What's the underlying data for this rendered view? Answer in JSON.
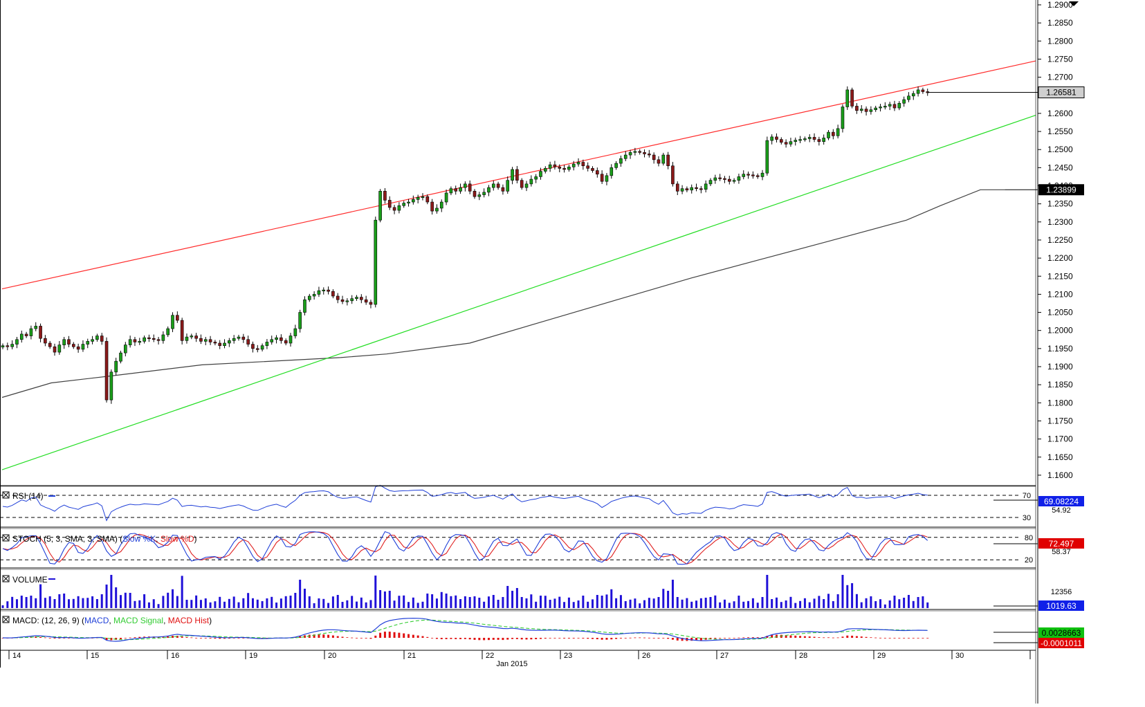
{
  "chart_data": {
    "type": "candlestick",
    "symbol_pair_hint": "",
    "x_axis": {
      "day_labels": [
        "14",
        "15",
        "16",
        "19",
        "20",
        "21",
        "22",
        "23",
        "26",
        "27",
        "28",
        "29",
        "30"
      ],
      "month_label": "Jan 2015"
    },
    "price_panel": {
      "y_ticks": [
        "1.2900",
        "1.2850",
        "1.2800",
        "1.2750",
        "1.2700",
        "1.2650",
        "1.2600",
        "1.2550",
        "1.2500",
        "1.2450",
        "1.2400",
        "1.2350",
        "1.2300",
        "1.2250",
        "1.2200",
        "1.2150",
        "1.2100",
        "1.2050",
        "1.2000",
        "1.1950",
        "1.1900",
        "1.1850",
        "1.1800",
        "1.1750",
        "1.1700",
        "1.1650",
        "1.1600"
      ],
      "ylim": [
        1.1575,
        1.2908
      ],
      "last_price_label": "1.26581",
      "ma_label": "1.23899",
      "closes": [
        1.1958,
        1.1955,
        1.1962,
        1.1975,
        1.199,
        1.1985,
        1.2005,
        1.2012,
        1.1978,
        1.1965,
        1.1955,
        1.194,
        1.196,
        1.1975,
        1.1962,
        1.1955,
        1.1948,
        1.1962,
        1.197,
        1.1975,
        1.1985,
        1.197,
        1.1808,
        1.1885,
        1.1915,
        1.1938,
        1.196,
        1.1975,
        1.1968,
        1.197,
        1.198,
        1.1978,
        1.1975,
        1.1972,
        1.1988,
        1.2005,
        1.2042,
        1.2028,
        1.1972,
        1.1982,
        1.1985,
        1.1978,
        1.197,
        1.1975,
        1.1968,
        1.1965,
        1.1958,
        1.1965,
        1.1972,
        1.1978,
        1.1982,
        1.1975,
        1.1962,
        1.195,
        1.1948,
        1.1958,
        1.1968,
        1.1975,
        1.198,
        1.1972,
        1.1965,
        1.1985,
        1.2005,
        1.205,
        1.2085,
        1.2095,
        1.21,
        1.211,
        1.2112,
        1.2108,
        1.2095,
        1.2085,
        1.208,
        1.2082,
        1.2088,
        1.2092,
        1.2085,
        1.2078,
        1.2072,
        1.2305,
        1.2385,
        1.236,
        1.234,
        1.2332,
        1.2345,
        1.2352,
        1.2355,
        1.2362,
        1.2368,
        1.237,
        1.2355,
        1.233,
        1.2338,
        1.2355,
        1.238,
        1.2392,
        1.2385,
        1.2395,
        1.2405,
        1.2385,
        1.237,
        1.2375,
        1.2382,
        1.2395,
        1.2405,
        1.2395,
        1.2385,
        1.2415,
        1.2445,
        1.2415,
        1.2395,
        1.2405,
        1.2418,
        1.2425,
        1.244,
        1.2448,
        1.2458,
        1.2452,
        1.2448,
        1.2445,
        1.2452,
        1.246,
        1.2465,
        1.2455,
        1.2448,
        1.2442,
        1.2432,
        1.2412,
        1.2428,
        1.245,
        1.2462,
        1.2475,
        1.2485,
        1.2492,
        1.2495,
        1.2492,
        1.2488,
        1.2485,
        1.2472,
        1.2462,
        1.2485,
        1.2455,
        1.2405,
        1.2385,
        1.2392,
        1.2388,
        1.2395,
        1.2392,
        1.239,
        1.2405,
        1.2415,
        1.2422,
        1.242,
        1.2418,
        1.2412,
        1.2415,
        1.2425,
        1.2432,
        1.243,
        1.2428,
        1.2425,
        1.2435,
        1.2525,
        1.2535,
        1.2528,
        1.252,
        1.2515,
        1.2522,
        1.2526,
        1.2528,
        1.253,
        1.2534,
        1.2528,
        1.2522,
        1.2532,
        1.2548,
        1.2538,
        1.2558,
        1.2618,
        1.2665,
        1.262,
        1.2608,
        1.2612,
        1.2605,
        1.261,
        1.2615,
        1.2618,
        1.262,
        1.2625,
        1.2615,
        1.2628,
        1.2638,
        1.2648,
        1.2655,
        1.2665,
        1.266,
        1.26581
      ],
      "ma200_points": [
        [
          0,
          1.1815
        ],
        [
          16,
          1.1855
        ],
        [
          36,
          1.1875
        ],
        [
          65,
          1.1905
        ],
        [
          110,
          1.1925
        ],
        [
          125,
          1.1935
        ],
        [
          152,
          1.1965
        ],
        [
          176,
          1.2025
        ],
        [
          200,
          1.2085
        ],
        [
          224,
          1.2145
        ],
        [
          246,
          1.2195
        ],
        [
          268,
          1.2245
        ],
        [
          294,
          1.2305
        ],
        [
          305,
          1.2345
        ],
        [
          318,
          1.2389
        ],
        [
          326,
          1.2389
        ]
      ],
      "resistance_line": [
        [
          0,
          1.2115
        ],
        [
          336,
          1.2745
        ]
      ],
      "support_line": [
        [
          0,
          1.1615
        ],
        [
          336,
          1.2595
        ]
      ]
    },
    "rsi": {
      "title": "RSI (14)",
      "period": 14,
      "levels": [
        70,
        30
      ],
      "last_value": "69.08224",
      "secondary_value": "54.92",
      "ylim": [
        15,
        85
      ]
    },
    "stochastic": {
      "title_prefix": "STOCH (5, 3, SMA, 3, SMA) (",
      "slow_k_label": "Slow %K",
      "slow_d_label": "Slow %D",
      "levels": [
        80,
        20
      ],
      "last_value": "72.497",
      "secondary_value": "58.37",
      "ylim": [
        0,
        100
      ]
    },
    "volume": {
      "title": "VOLUME",
      "tick_label": "12356",
      "last_value": "1019.63"
    },
    "macd": {
      "title_prefix": "MACD: (12, 26, 9) (",
      "macd_label": "MACD",
      "signal_label": "MACD Signal",
      "hist_label": "MACD Hist",
      "value_macd": "0.0028663",
      "value_hist": "-0.0001011"
    },
    "colors": {
      "resistance": "#ff2a2a",
      "support": "#22dd22",
      "ma": "#404040",
      "bull_body": "#1a9e1a",
      "bear_body": "#8b1a1a",
      "rsi": "#1f3fd8",
      "stoch_k": "#1f3fd8",
      "stoch_d": "#e02020",
      "volume": "#1f10d8",
      "macd": "#1f3fd8",
      "signal": "#33cc33",
      "hist": "#e01010",
      "last_price_bg": "#cfcfcf",
      "ma_bg": "#000000",
      "rsi_badge": "#1020e8",
      "stoch_badge": "#e00000",
      "vol_badge": "#1020e8",
      "macd_badge": "#10c010",
      "hist_badge": "#e00000"
    }
  }
}
